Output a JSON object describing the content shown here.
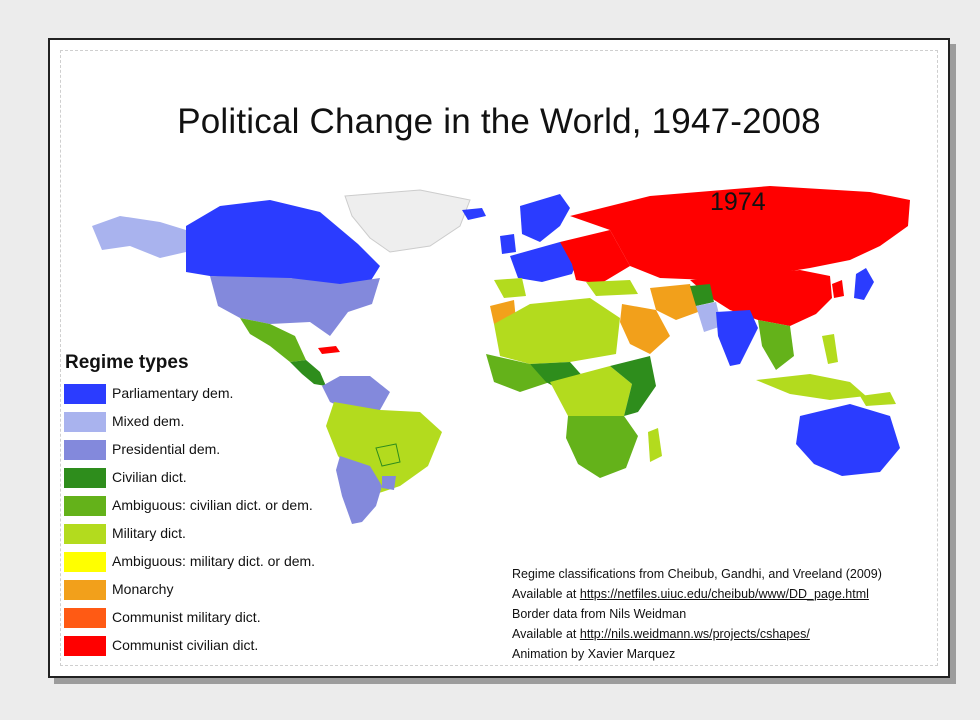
{
  "title": "Political Change in the World, 1947-2008",
  "year": "1974",
  "legend": {
    "title": "Regime types",
    "items": [
      {
        "label": "Parliamentary dem.",
        "color": "#2b3cff"
      },
      {
        "label": "Mixed dem.",
        "color": "#a9b3ee"
      },
      {
        "label": "Presidential dem.",
        "color": "#8389dc"
      },
      {
        "label": "Civilian dict.",
        "color": "#2e8d1c"
      },
      {
        "label": "Ambiguous: civilian dict. or dem.",
        "color": "#64b21a"
      },
      {
        "label": "Military dict.",
        "color": "#b3db1e"
      },
      {
        "label": "Ambiguous: military dict. or dem.",
        "color": "#ffff00"
      },
      {
        "label": "Monarchy",
        "color": "#f2a01b"
      },
      {
        "label": "Communist military dict.",
        "color": "#ff5a14"
      },
      {
        "label": "Communist civilian dict.",
        "color": "#ff0000"
      }
    ]
  },
  "credits": {
    "line1": "Regime classifications from Cheibub, Gandhi, and Vreeland (2009)",
    "line2_prefix": "Available at ",
    "line2_link": "https://netfiles.uiuc.edu/cheibub/www/DD_page.html",
    "line3": "Border data from Nils Weidman",
    "line4_prefix": "Available at ",
    "line4_link": "http://nils.weidmann.ws/projects/cshapes/",
    "line5": "Animation by Xavier Marquez"
  }
}
